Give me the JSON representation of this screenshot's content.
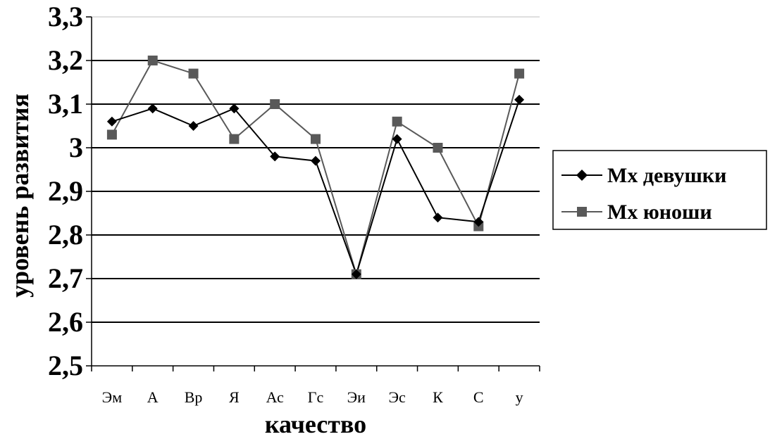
{
  "chart_data": {
    "type": "line",
    "xlabel": "качество",
    "ylabel": "уровень развития",
    "categories": [
      "Эм",
      "А",
      "Вр",
      "Я",
      "Ас",
      "Гс",
      "Эи",
      "Эс",
      "К",
      "С",
      "у"
    ],
    "ylim": [
      2.5,
      3.3
    ],
    "yticks": [
      "2,5",
      "2,6",
      "2,7",
      "2,8",
      "2,9",
      "3",
      "3,1",
      "3,2",
      "3,3"
    ],
    "grid": true,
    "legend_position": "right",
    "series": [
      {
        "name": "Mx девушки",
        "marker": "diamond",
        "color": "#000000",
        "values": [
          3.06,
          3.09,
          3.05,
          3.09,
          2.98,
          2.97,
          2.71,
          3.02,
          2.84,
          2.83,
          3.11
        ]
      },
      {
        "name": "Mx юноши",
        "marker": "square",
        "color": "#595959",
        "values": [
          3.03,
          3.2,
          3.17,
          3.02,
          3.1,
          3.02,
          2.71,
          3.06,
          3.0,
          2.82,
          3.17
        ]
      }
    ]
  }
}
